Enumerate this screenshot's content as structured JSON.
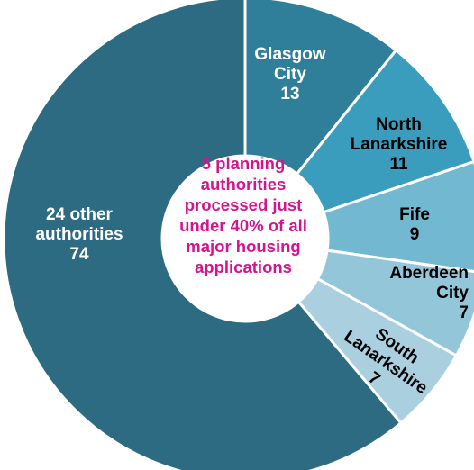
{
  "chart_data": {
    "type": "donut",
    "categories": [
      "Glasgow City",
      "North Lanarkshire",
      "Fife",
      "Aberdeen City",
      "South Lanarkshire",
      "24 other authorities"
    ],
    "values": [
      13,
      11,
      9,
      7,
      7,
      74
    ],
    "colors": [
      "#2f7f9a",
      "#3a9dbd",
      "#72b8d0",
      "#94c6da",
      "#aacfdf",
      "#2c6b81"
    ],
    "center_text": "5 planning authorities processed just under 40% of all major housing applications"
  }
}
